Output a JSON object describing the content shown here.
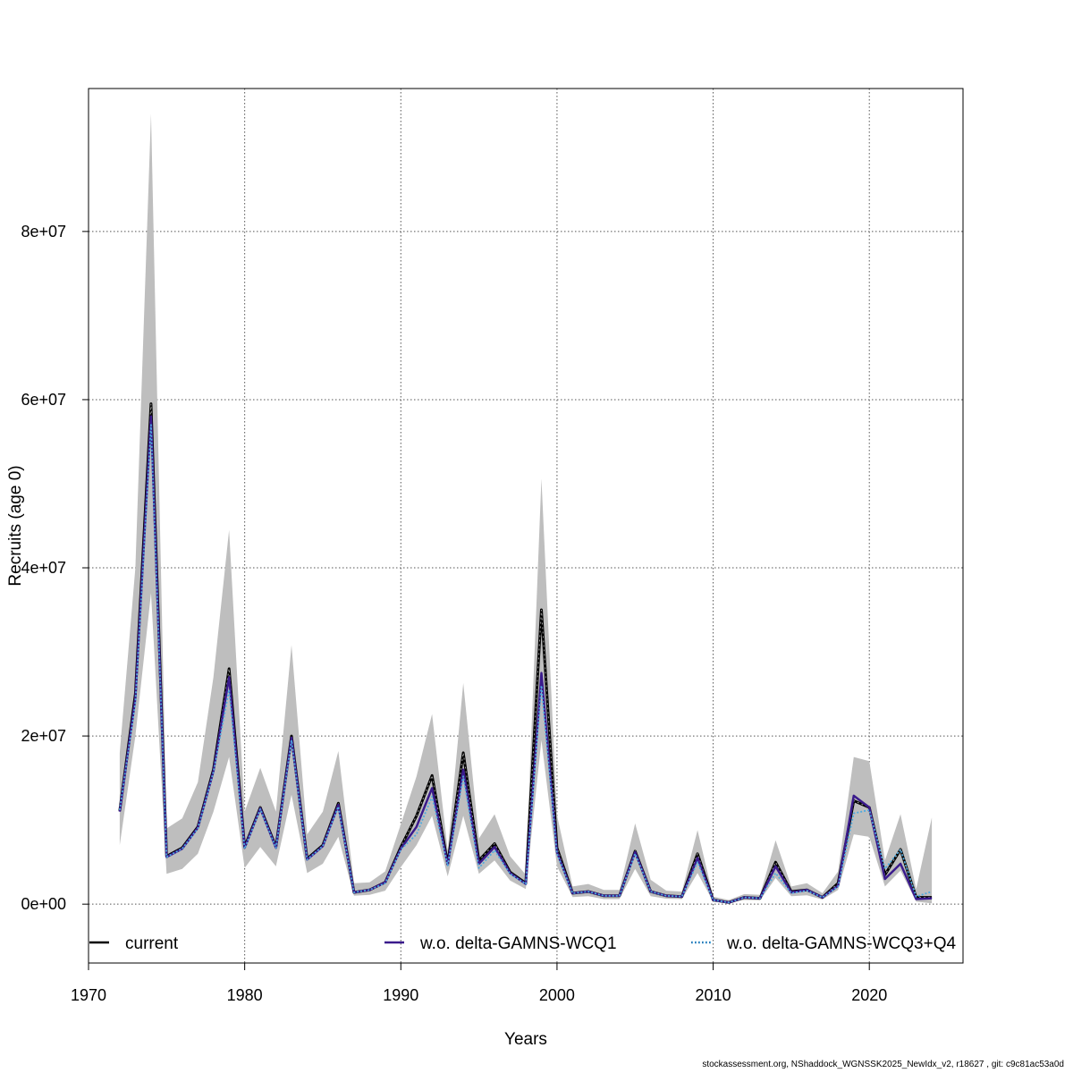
{
  "chart_data": {
    "type": "line",
    "title": "",
    "xlabel": "Years",
    "ylabel": "Recruits (age 0)",
    "xlim": [
      1970,
      2026
    ],
    "ylim": [
      -7000000,
      97000000
    ],
    "xticks": [
      1970,
      1980,
      1990,
      2000,
      2010,
      2020
    ],
    "xtick_labels": [
      "1970",
      "1980",
      "1990",
      "2000",
      "2010",
      "2020"
    ],
    "yticks": [
      0,
      20000000,
      40000000,
      60000000,
      80000000
    ],
    "ytick_labels": [
      "0e+00",
      "2e+07",
      "4e+07",
      "6e+07",
      "8e+07"
    ],
    "grid": true,
    "legend_position": "bottom",
    "x": [
      1972,
      1973,
      1974,
      1975,
      1976,
      1977,
      1978,
      1979,
      1980,
      1981,
      1982,
      1983,
      1984,
      1985,
      1986,
      1987,
      1988,
      1989,
      1990,
      1991,
      1992,
      1993,
      1994,
      1995,
      1996,
      1997,
      1998,
      1999,
      2000,
      2001,
      2002,
      2003,
      2004,
      2005,
      2006,
      2007,
      2008,
      2009,
      2010,
      2011,
      2012,
      2013,
      2014,
      2015,
      2016,
      2017,
      2018,
      2019,
      2020,
      2021,
      2022,
      2023,
      2024
    ],
    "confidence_band": {
      "color": "#bebebe",
      "lower": [
        7000000,
        20000000,
        37000000,
        3600000,
        4200000,
        6000000,
        11000000,
        17500000,
        4300000,
        6800000,
        4500000,
        13000000,
        3700000,
        4800000,
        8000000,
        1000000,
        1100000,
        1600000,
        4400000,
        7000000,
        10500000,
        3300000,
        10500000,
        3600000,
        5200000,
        2800000,
        1800000,
        19500000,
        4500000,
        850000,
        950000,
        600000,
        600000,
        4200000,
        950000,
        650000,
        600000,
        3700000,
        300000,
        150000,
        500000,
        450000,
        3100000,
        950000,
        1050000,
        550000,
        1700000,
        8300000,
        8000000,
        2100000,
        4000000,
        300000,
        100000
      ],
      "upper": [
        18000000,
        40000000,
        94000000,
        9000000,
        10200000,
        14500000,
        27000000,
        44500000,
        11000000,
        16200000,
        11000000,
        30800000,
        8300000,
        11000000,
        18200000,
        2500000,
        2600000,
        3900000,
        9500000,
        15200000,
        22600000,
        6400000,
        26300000,
        7800000,
        10700000,
        5700000,
        3500000,
        50600000,
        10600000,
        2100000,
        2400000,
        1700000,
        1700000,
        9600000,
        2900000,
        1600000,
        1500000,
        8800000,
        900000,
        500000,
        1200000,
        1100000,
        7600000,
        2100000,
        2500000,
        1300000,
        3900000,
        17500000,
        17000000,
        5200000,
        10700000,
        1800000,
        10300000
      ]
    },
    "series": [
      {
        "name": "current",
        "color": "#000000",
        "dash": "solid",
        "values": [
          11100000,
          25000000,
          59500000,
          5700000,
          6700000,
          9200000,
          16000000,
          28000000,
          6800000,
          11500000,
          6800000,
          20000000,
          5400000,
          7000000,
          12000000,
          1400000,
          1700000,
          2600000,
          6800000,
          10500000,
          15300000,
          4800000,
          18000000,
          5200000,
          7200000,
          3800000,
          2500000,
          35000000,
          6700000,
          1300000,
          1500000,
          1000000,
          1000000,
          6300000,
          1500000,
          1000000,
          900000,
          6000000,
          500000,
          200000,
          800000,
          700000,
          5000000,
          1500000,
          1700000,
          800000,
          2500000,
          12300000,
          11500000,
          3500000,
          6500000,
          800000,
          800000
        ]
      },
      {
        "name": "w.o. delta-GAMNS-WCQ1",
        "color": "#3a1a8c",
        "dash": "solid",
        "values": [
          11000000,
          24500000,
          58000000,
          5600000,
          6600000,
          9100000,
          15800000,
          27000000,
          6700000,
          11400000,
          6700000,
          19800000,
          5300000,
          6900000,
          11800000,
          1400000,
          1700000,
          2600000,
          6600000,
          9200000,
          13800000,
          4700000,
          16000000,
          4800000,
          6800000,
          3700000,
          2400000,
          27500000,
          6200000,
          1300000,
          1500000,
          1000000,
          1000000,
          6200000,
          1500000,
          1000000,
          900000,
          5500000,
          500000,
          200000,
          800000,
          700000,
          4500000,
          1400000,
          1700000,
          800000,
          2200000,
          12900000,
          11500000,
          3000000,
          4800000,
          600000,
          700000
        ]
      },
      {
        "name": "w.o. delta-GAMNS-WCQ3+Q4",
        "color": "#4eaadf",
        "dash": "dotted",
        "values": [
          11200000,
          24000000,
          57000000,
          5600000,
          6600000,
          9000000,
          15700000,
          25500000,
          6600000,
          11300000,
          6700000,
          19500000,
          5300000,
          6900000,
          11600000,
          1400000,
          1700000,
          2500000,
          6500000,
          8300000,
          12800000,
          4600000,
          15200000,
          4300000,
          6400000,
          3600000,
          2400000,
          26000000,
          6000000,
          1300000,
          1500000,
          1000000,
          1000000,
          6000000,
          1500000,
          1000000,
          900000,
          5000000,
          500000,
          200000,
          800000,
          700000,
          3700000,
          1300000,
          1600000,
          800000,
          2100000,
          10800000,
          11200000,
          4200000,
          6500000,
          900000,
          1500000
        ]
      }
    ]
  },
  "footer": "stockassessment.org, NShaddock_WGNSSK2025_NewIdx_v2, r18627 , git: c9c81ac53a0d"
}
